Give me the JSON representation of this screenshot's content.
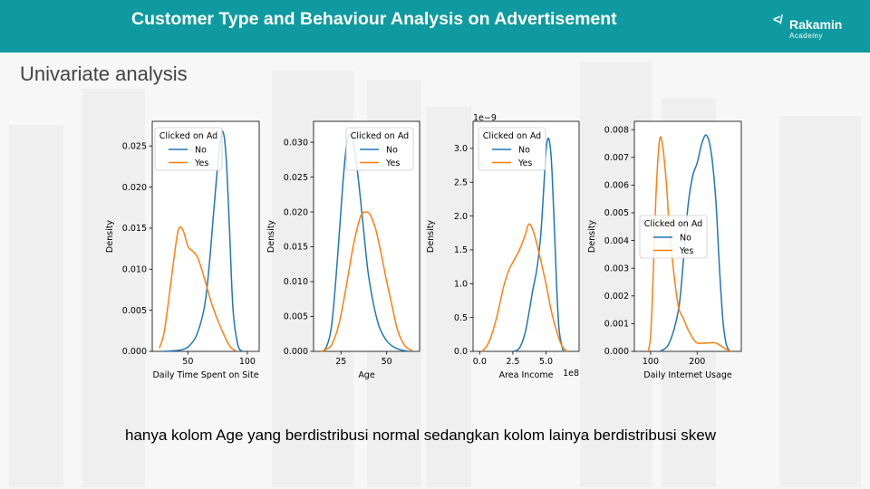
{
  "header": {
    "title": "Customer Type and Behaviour Analysis on Advertisement",
    "logo_name": "Rakamin",
    "logo_sub": "Academy"
  },
  "subtitle": "Univariate analysis",
  "caption": "hanya kolom Age yang berdistribusi normal sedangkan kolom lainya berdistribusi skew",
  "colors": {
    "no": "#1f77b4",
    "yes": "#ff7f0e",
    "header": "#0e9aa0"
  },
  "chart_data": [
    {
      "type": "line",
      "xlabel": "Daily Time Spent on Site",
      "ylabel": "Density",
      "legend_title": "Clicked on Ad",
      "legend_position": "top-left",
      "xlim": [
        20,
        110
      ],
      "ylim": [
        0,
        0.028
      ],
      "xticks": [
        50,
        100
      ],
      "xtick_labels": [
        "50",
        "100"
      ],
      "yticks": [
        0,
        0.005,
        0.01,
        0.015,
        0.02,
        0.025
      ],
      "ytick_labels": [
        "0.000",
        "0.005",
        "0.010",
        "0.015",
        "0.020",
        "0.025"
      ],
      "series": [
        {
          "name": "No",
          "x": [
            30,
            45,
            52,
            58,
            64,
            68,
            72,
            76,
            79,
            82,
            85,
            88,
            92,
            96
          ],
          "y": [
            0.0,
            0.0002,
            0.0008,
            0.0022,
            0.0055,
            0.0105,
            0.0175,
            0.024,
            0.0268,
            0.024,
            0.015,
            0.005,
            0.0008,
            0.0
          ]
        },
        {
          "name": "Yes",
          "x": [
            26,
            30,
            34,
            38,
            42,
            46,
            50,
            54,
            58,
            62,
            66,
            70,
            74,
            78,
            82,
            86,
            90
          ],
          "y": [
            0.0004,
            0.0023,
            0.0065,
            0.011,
            0.0148,
            0.0147,
            0.0128,
            0.0122,
            0.0115,
            0.0098,
            0.0078,
            0.0058,
            0.0042,
            0.0028,
            0.0015,
            0.0005,
            0.0001
          ]
        }
      ]
    },
    {
      "type": "line",
      "xlabel": "Age",
      "ylabel": "Density",
      "legend_title": "Clicked on Ad",
      "legend_position": "top-right",
      "xlim": [
        10,
        68
      ],
      "ylim": [
        0,
        0.033
      ],
      "xticks": [
        25,
        50
      ],
      "xtick_labels": [
        "25",
        "50"
      ],
      "yticks": [
        0,
        0.005,
        0.01,
        0.015,
        0.02,
        0.025,
        0.03
      ],
      "ytick_labels": [
        "0.000",
        "0.005",
        "0.010",
        "0.015",
        "0.020",
        "0.025",
        "0.030"
      ],
      "series": [
        {
          "name": "No",
          "x": [
            14,
            17,
            20,
            23,
            26,
            28,
            30,
            32,
            34,
            36,
            38,
            40,
            43,
            46,
            50,
            54,
            58,
            62
          ],
          "y": [
            0.0,
            0.0006,
            0.004,
            0.013,
            0.024,
            0.0295,
            0.0312,
            0.0295,
            0.0258,
            0.021,
            0.0158,
            0.011,
            0.0065,
            0.0035,
            0.0015,
            0.0006,
            0.0002,
            0.0
          ]
        },
        {
          "name": "Yes",
          "x": [
            14,
            17,
            20,
            24,
            28,
            32,
            36,
            40,
            42,
            44,
            47,
            50,
            53,
            56,
            60,
            64
          ],
          "y": [
            0.0,
            0.0003,
            0.001,
            0.004,
            0.0095,
            0.0155,
            0.0195,
            0.0199,
            0.019,
            0.0175,
            0.014,
            0.01,
            0.0065,
            0.003,
            0.0008,
            0.0001
          ]
        }
      ]
    },
    {
      "type": "line",
      "xlabel": "Area Income",
      "ylabel": "Density",
      "legend_title": "Clicked on Ad",
      "legend_position": "top-left",
      "y_multiplier_label": "1e−9",
      "x_multiplier_label": "1e8",
      "xlim": [
        -0.05,
        0.75
      ],
      "ylim": [
        0,
        3.4
      ],
      "xticks": [
        0,
        0.25,
        0.5
      ],
      "xtick_labels": [
        "0.0",
        "2.5",
        "5.0"
      ],
      "yticks": [
        0,
        0.5,
        1.0,
        1.5,
        2.0,
        2.5,
        3.0
      ],
      "ytick_labels": [
        "0.0",
        "0.5",
        "1.0",
        "1.5",
        "2.0",
        "2.5",
        "3.0"
      ],
      "series": [
        {
          "name": "No",
          "x": [
            0.26,
            0.3,
            0.34,
            0.37,
            0.4,
            0.43,
            0.46,
            0.48,
            0.5,
            0.52,
            0.54,
            0.56,
            0.58,
            0.6,
            0.63
          ],
          "y": [
            0.0,
            0.05,
            0.25,
            0.55,
            0.9,
            1.2,
            1.7,
            2.3,
            2.95,
            3.15,
            2.85,
            2.0,
            1.0,
            0.3,
            0.0
          ]
        },
        {
          "name": "Yes",
          "x": [
            0.02,
            0.06,
            0.1,
            0.14,
            0.18,
            0.22,
            0.26,
            0.3,
            0.34,
            0.37,
            0.4,
            0.43,
            0.46,
            0.5,
            0.54,
            0.58,
            0.62,
            0.66
          ],
          "y": [
            0.0,
            0.1,
            0.3,
            0.6,
            0.95,
            1.2,
            1.35,
            1.5,
            1.7,
            1.88,
            1.8,
            1.6,
            1.35,
            1.0,
            0.6,
            0.3,
            0.08,
            0.0
          ]
        }
      ]
    },
    {
      "type": "line",
      "xlabel": "Daily Internet Usage",
      "ylabel": "Density",
      "legend_title": "Clicked on Ad",
      "legend_position": "center-left",
      "xlim": [
        65,
        295
      ],
      "ylim": [
        0,
        0.0083
      ],
      "xticks": [
        100,
        200
      ],
      "xtick_labels": [
        "100",
        "200"
      ],
      "yticks": [
        0,
        0.001,
        0.002,
        0.003,
        0.004,
        0.005,
        0.006,
        0.007,
        0.008
      ],
      "ytick_labels": [
        "0.000",
        "0.001",
        "0.002",
        "0.003",
        "0.004",
        "0.005",
        "0.006",
        "0.007",
        "0.008"
      ],
      "series": [
        {
          "name": "No",
          "x": [
            120,
            140,
            160,
            170,
            180,
            190,
            200,
            210,
            220,
            230,
            240,
            248,
            255,
            262,
            270
          ],
          "y": [
            0.0,
            0.0003,
            0.0015,
            0.0032,
            0.0052,
            0.0063,
            0.0068,
            0.0075,
            0.0078,
            0.0072,
            0.0055,
            0.003,
            0.0012,
            0.0003,
            0.0
          ]
        },
        {
          "name": "Yes",
          "x": [
            95,
            100,
            105,
            110,
            115,
            120,
            125,
            130,
            135,
            140,
            150,
            160,
            170,
            180,
            190,
            200,
            220,
            240,
            260,
            275
          ],
          "y": [
            0.0,
            0.0006,
            0.0025,
            0.005,
            0.0068,
            0.0077,
            0.0075,
            0.0068,
            0.0058,
            0.0045,
            0.0028,
            0.0016,
            0.0012,
            0.0008,
            0.0005,
            0.0003,
            0.0003,
            0.0003,
            0.0001,
            0.0
          ]
        }
      ]
    }
  ]
}
